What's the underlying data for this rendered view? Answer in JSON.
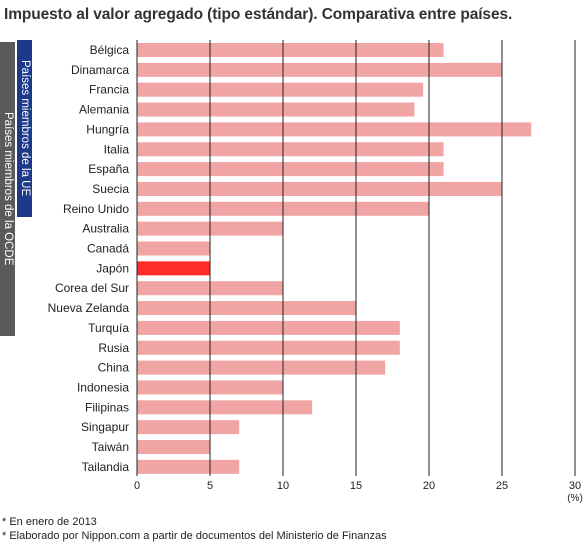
{
  "title": "Impuesto al valor agregado (tipo estándar). Comparativa entre países.",
  "groups": {
    "ue_label": "Países miembros de la UE",
    "ocde_label": "Países miembros de la OCDE"
  },
  "notes": [
    "* En enero de 2013",
    "* Elaborado por Nippon.com a partir de documentos del Ministerio de Finanzas"
  ],
  "colors": {
    "bar": "#f0a4a4",
    "highlight": "#ff2b2b",
    "grid": "#222222",
    "ue_band": "#1d3a8a",
    "ocde_band": "#5a5a5a"
  },
  "chart_data": {
    "type": "bar",
    "orientation": "horizontal",
    "categories": [
      "Bélgica",
      "Dinamarca",
      "Francia",
      "Alemania",
      "Hungría",
      "Italia",
      "España",
      "Suecia",
      "Reino Unido",
      "Australia",
      "Canadá",
      "Japón",
      "Corea del Sur",
      "Nueva Zelanda",
      "Turquía",
      "Rusia",
      "China",
      "Indonesia",
      "Filipinas",
      "Singapur",
      "Taiwán",
      "Tailandia"
    ],
    "values": [
      21,
      25,
      19.6,
      19,
      27,
      21,
      21,
      25,
      20,
      10,
      5,
      5,
      10,
      15,
      18,
      18,
      17,
      10,
      12,
      7,
      5,
      7
    ],
    "highlight": "Japón",
    "xlim": [
      0,
      30
    ],
    "xticks": [
      "0",
      "5",
      "10",
      "15",
      "20",
      "25",
      "30"
    ],
    "unit_label": "(%)",
    "grid": "vertical"
  }
}
